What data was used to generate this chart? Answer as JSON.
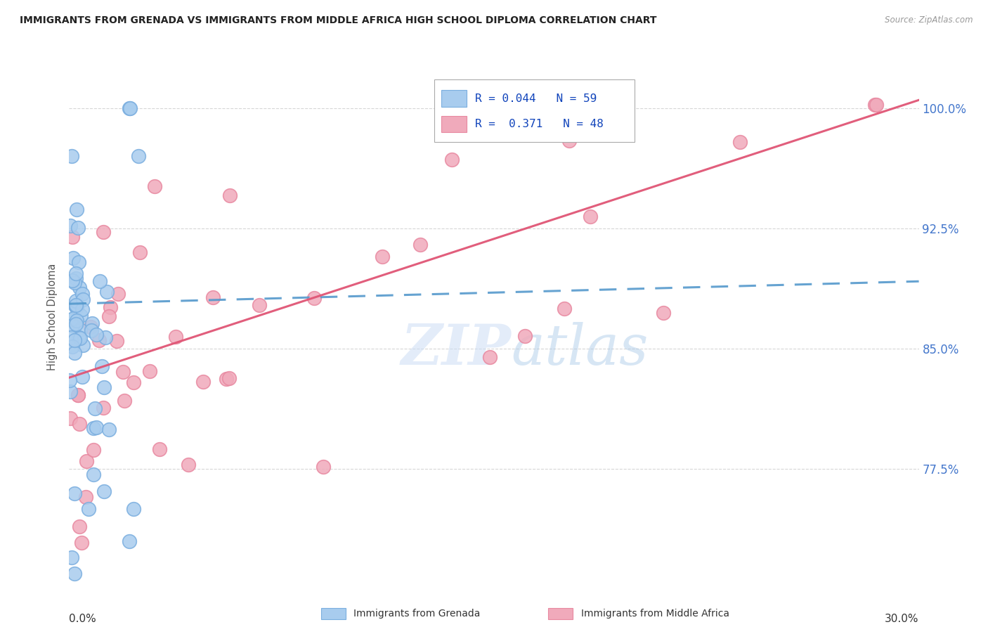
{
  "title": "IMMIGRANTS FROM GRENADA VS IMMIGRANTS FROM MIDDLE AFRICA HIGH SCHOOL DIPLOMA CORRELATION CHART",
  "source": "Source: ZipAtlas.com",
  "ylabel": "High School Diploma",
  "yticks": [
    0.775,
    0.85,
    0.925,
    1.0
  ],
  "ytick_labels": [
    "77.5%",
    "85.0%",
    "92.5%",
    "100.0%"
  ],
  "xmin": 0.0,
  "xmax": 0.3,
  "ymin": 0.7,
  "ymax": 1.04,
  "grenada_R": 0.044,
  "grenada_N": 59,
  "africa_R": 0.371,
  "africa_N": 48,
  "grenada_color": "#A8CCEE",
  "africa_color": "#F0AABB",
  "grenada_edge_color": "#7AAEDF",
  "africa_edge_color": "#E888A0",
  "grenada_line_color": "#5599CC",
  "africa_line_color": "#E05575",
  "watermark_zip": "ZIP",
  "watermark_atlas": "atlas",
  "legend_label_grenada": "Immigrants from Grenada",
  "legend_label_africa": "Immigrants from Middle Africa",
  "grenada_line_y0": 0.878,
  "grenada_line_y1": 0.892,
  "africa_line_y0": 0.832,
  "africa_line_y1": 1.005
}
